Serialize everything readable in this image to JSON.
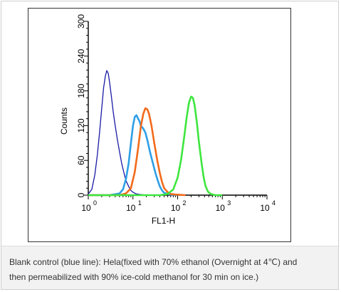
{
  "caption": {
    "line1": "Blank control (blue line): Hela(fixed with 70% ethanol (Overnight at 4℃) and",
    "line2": "then permeabilized with 90% ice-cold methanol for 30 min on ice.)"
  },
  "chart_data": {
    "type": "line",
    "title": "",
    "xlabel": "FL1-H",
    "ylabel": "Counts",
    "xscale": "log",
    "xlim": [
      1,
      10000
    ],
    "ylim": [
      0,
      300
    ],
    "x_tick_labels": [
      {
        "value": 1,
        "base": "10",
        "exp": "0"
      },
      {
        "value": 10,
        "base": "10",
        "exp": "1"
      },
      {
        "value": 100,
        "base": "10",
        "exp": "2"
      },
      {
        "value": 1000,
        "base": "10",
        "exp": "3"
      },
      {
        "value": 10000,
        "base": "10",
        "exp": "4"
      }
    ],
    "y_ticks": [
      0,
      60,
      120,
      180,
      240,
      300
    ],
    "y_tick_labels": [
      "0",
      "60",
      "120",
      "180",
      "240",
      "300"
    ],
    "grid": false,
    "legend": "none",
    "series": [
      {
        "color": "#1a1aa6",
        "x": [
          1.0,
          1.2,
          1.4,
          1.6,
          1.8,
          2.0,
          2.2,
          2.4,
          2.6,
          2.8,
          3.0,
          3.3,
          3.6,
          4.0,
          4.5,
          5.0,
          5.6,
          6.3,
          7.0,
          8.0,
          9.0,
          10.0,
          12.0,
          15.0,
          20.0,
          30.0,
          50.0
        ],
        "y": [
          2,
          10,
          35,
          70,
          110,
          150,
          185,
          205,
          215,
          210,
          195,
          170,
          145,
          120,
          95,
          75,
          55,
          38,
          25,
          15,
          8,
          5,
          2,
          1,
          0,
          0,
          0
        ]
      },
      {
        "color": "#2e9fe6",
        "x": [
          1.0,
          3.0,
          5.0,
          6.0,
          7.0,
          8.0,
          9.0,
          10.0,
          11.0,
          12.0,
          13.0,
          14.0,
          15.0,
          17.0,
          19.0,
          21.0,
          24.0,
          28.0,
          32.0,
          36.0,
          40.0,
          45.0,
          50.0,
          60.0,
          70.0,
          100.0
        ],
        "y": [
          0,
          0,
          3,
          10,
          28,
          55,
          90,
          120,
          135,
          138,
          132,
          128,
          120,
          115,
          108,
          95,
          75,
          55,
          38,
          25,
          15,
          8,
          4,
          2,
          1,
          0
        ]
      },
      {
        "color": "#f26a1b",
        "x": [
          1.0,
          5.0,
          7.0,
          9.0,
          11.0,
          13.0,
          15.0,
          17.0,
          19.0,
          21.0,
          23.0,
          26.0,
          30.0,
          35.0,
          40.0,
          45.0,
          50.0,
          60.0,
          70.0,
          90.0,
          150.0
        ],
        "y": [
          0,
          0,
          3,
          12,
          40,
          80,
          118,
          140,
          150,
          148,
          140,
          120,
          90,
          60,
          38,
          22,
          12,
          5,
          2,
          1,
          0
        ]
      },
      {
        "color": "#3ee63e",
        "x": [
          1.0,
          40.0,
          60.0,
          80.0,
          100.0,
          120.0,
          140.0,
          160.0,
          180.0,
          200.0,
          220.0,
          240.0,
          270.0,
          300.0,
          340.0,
          380.0,
          420.0,
          480.0,
          550.0,
          700.0,
          1000.0
        ],
        "y": [
          0,
          0,
          2,
          10,
          30,
          62,
          100,
          135,
          160,
          170,
          168,
          155,
          125,
          92,
          58,
          32,
          16,
          6,
          2,
          0,
          0
        ]
      }
    ]
  }
}
